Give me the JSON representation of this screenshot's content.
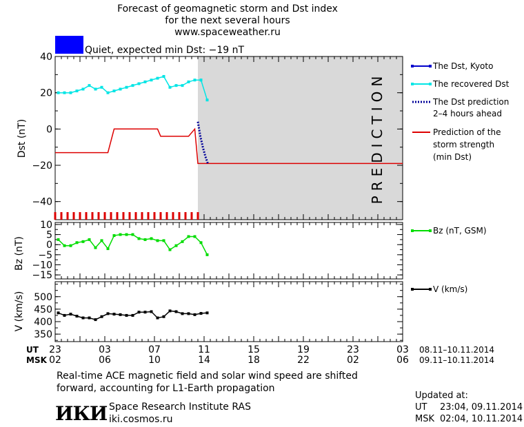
{
  "header": {
    "title_line1": "Forecast of geomagnetic storm and Dst index",
    "title_line2": "for the next several hours",
    "website": "www.spaceweather.ru",
    "status_color": "#0000ff",
    "status_text": "Quiet, expected min Dst: −19 nT"
  },
  "legend": {
    "kyoto": "The Dst, Kyoto",
    "recovered": "The recovered Dst",
    "prediction_line1": "The Dst prediction",
    "prediction_line2": "2–4 hours ahead",
    "strength_line1": "Prediction of the",
    "strength_line2": "storm strength",
    "strength_line3": "(min Dst)",
    "bz": "Bz (nT, GSM)",
    "v": "V (km/s)"
  },
  "prediction_label": "PREDICTION",
  "time_axis": {
    "ut_label": "UT",
    "msk_label": "MSK",
    "ut_ticks": [
      "23",
      "03",
      "07",
      "11",
      "15",
      "19",
      "23",
      "03"
    ],
    "msk_ticks": [
      "02",
      "06",
      "10",
      "14",
      "18",
      "22",
      "02",
      "06"
    ],
    "ut_range": "08.11–10.11.2014",
    "msk_range": "09.11–10.11.2014"
  },
  "footer": {
    "note_line1": "Real-time ACE magnetic field and solar wind speed are shifted",
    "note_line2": "forward, accounting for L1-Earth propagation",
    "logo_text": "ИКИ",
    "institute": "Space Research Institute RAS",
    "institute_site": "iki.cosmos.ru",
    "updated_label": "Updated at:",
    "updated_ut_label": "UT",
    "updated_ut": "23:04, 09.11.2014",
    "updated_msk_label": "MSK",
    "updated_msk": "02:04, 10.11.2014"
  },
  "colors": {
    "kyoto": "#0000cc",
    "recovered": "#00e5e5",
    "prediction": "#000099",
    "strength": "#dd0000",
    "bz": "#00dd00",
    "v": "#000000",
    "prediction_zone": "#d9d9d9"
  },
  "chart_data": [
    {
      "type": "line",
      "title": "Forecast of geomagnetic storm and Dst index",
      "ylabel": "Dst (nT)",
      "ylim": [
        -50,
        40
      ],
      "yticks": [
        40,
        20,
        0,
        -20,
        -40
      ],
      "xlim_hours": [
        0,
        56
      ],
      "x_unit": "hours from 23 UT, 08.11.2014",
      "prediction_zone_hours": [
        23,
        56
      ],
      "series": [
        {
          "name": "The recovered Dst",
          "x": [
            0.5,
            1.5,
            2.5,
            3.5,
            4.5,
            5.5,
            6.5,
            7.5,
            8.5,
            9.5,
            10.5,
            11.5,
            12.5,
            13.5,
            14.5,
            15.5,
            16.5,
            17.5,
            18.5,
            19.5,
            20.5,
            21.5,
            22.5,
            23.5
          ],
          "y": [
            20,
            20,
            20,
            21,
            22,
            24,
            22,
            23,
            20,
            21,
            22,
            23,
            24,
            25,
            26,
            27,
            28,
            29,
            23,
            24,
            24,
            26,
            27,
            27
          ]
        },
        {
          "name": "The recovered Dst (forecast)",
          "x": [
            23.5,
            24.5
          ],
          "y": [
            27,
            16
          ]
        },
        {
          "name": "The Dst prediction 2–4 hours ahead",
          "x": [
            23.0,
            23.4,
            23.8,
            24.2,
            24.6
          ],
          "y": [
            4,
            -4,
            -10,
            -15,
            -19
          ]
        },
        {
          "name": "Prediction of the storm strength (min Dst)",
          "x": [
            0,
            8.5,
            9.5,
            16.5,
            17.0,
            21.5,
            22.5,
            23.0,
            56
          ],
          "y": [
            -13,
            -13,
            0,
            0,
            -4,
            -4,
            0,
            -19,
            -19
          ]
        }
      ],
      "red_tick_hours": [
        0,
        1,
        2,
        3,
        4,
        5,
        6,
        7,
        8,
        9,
        10,
        11,
        12,
        13,
        14,
        15,
        16,
        17,
        18,
        19,
        20,
        21,
        22,
        23
      ]
    },
    {
      "type": "line",
      "ylabel": "Bz (nT)",
      "ylim": [
        -17,
        11
      ],
      "yticks": [
        10,
        5,
        0,
        -5,
        -10,
        -15
      ],
      "series": [
        {
          "name": "Bz (nT, GSM)",
          "x": [
            0.5,
            1.5,
            2.5,
            3.5,
            4.5,
            5.5,
            6.5,
            7.5,
            8.5,
            9.5,
            10.5,
            11.5,
            12.5,
            13.5,
            14.5,
            15.5,
            16.5,
            17.5,
            18.5,
            19.5,
            20.5,
            21.5,
            22.5,
            23.5,
            24.5
          ],
          "y": [
            2.5,
            -0.5,
            -0.5,
            1,
            1.5,
            2.5,
            -1.5,
            2,
            -2,
            4.5,
            5,
            5,
            5,
            3,
            2.5,
            3,
            2,
            2,
            -2.5,
            -0.5,
            1.5,
            4,
            4,
            1,
            -5
          ]
        }
      ]
    },
    {
      "type": "line",
      "ylabel": "V (km/s)",
      "ylim": [
        320,
        560
      ],
      "yticks": [
        500,
        450,
        400,
        350
      ],
      "series": [
        {
          "name": "V (km/s)",
          "x": [
            0.5,
            1.5,
            2.5,
            3.5,
            4.5,
            5.5,
            6.5,
            7.5,
            8.5,
            9.5,
            10.5,
            11.5,
            12.5,
            13.5,
            14.5,
            15.5,
            16.5,
            17.5,
            18.5,
            19.5,
            20.5,
            21.5,
            22.5,
            23.5,
            24.5
          ],
          "y": [
            435,
            425,
            430,
            422,
            415,
            415,
            408,
            420,
            432,
            430,
            428,
            425,
            425,
            438,
            438,
            440,
            415,
            420,
            443,
            440,
            432,
            432,
            428,
            433,
            435
          ]
        }
      ]
    }
  ]
}
